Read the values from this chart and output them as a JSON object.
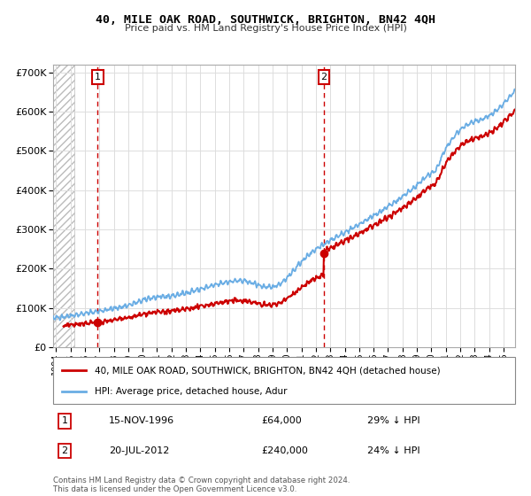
{
  "title": "40, MILE OAK ROAD, SOUTHWICK, BRIGHTON, BN42 4QH",
  "subtitle": "Price paid vs. HM Land Registry's House Price Index (HPI)",
  "ylim": [
    0,
    720000
  ],
  "xlim_start": 1993.8,
  "xlim_end": 2025.8,
  "yticks": [
    0,
    100000,
    200000,
    300000,
    400000,
    500000,
    600000,
    700000
  ],
  "ytick_labels": [
    "£0",
    "£100K",
    "£200K",
    "£300K",
    "£400K",
    "£500K",
    "£600K",
    "£700K"
  ],
  "xtick_years": [
    1994,
    1995,
    1996,
    1997,
    1998,
    1999,
    2000,
    2001,
    2002,
    2003,
    2004,
    2005,
    2006,
    2007,
    2008,
    2009,
    2010,
    2011,
    2012,
    2013,
    2014,
    2015,
    2016,
    2017,
    2018,
    2019,
    2020,
    2021,
    2022,
    2023,
    2024,
    2025
  ],
  "hatch_region_start": 1993.8,
  "hatch_region_end": 1995.3,
  "red_line_color": "#cc0000",
  "blue_line_color": "#6aade4",
  "marker1_x": 1996.88,
  "marker1_y": 64000,
  "marker2_x": 2012.55,
  "marker2_y": 240000,
  "marker1_label": "1",
  "marker2_label": "2",
  "vline1_x": 1996.88,
  "vline2_x": 2012.55,
  "legend_line1": "40, MILE OAK ROAD, SOUTHWICK, BRIGHTON, BN42 4QH (detached house)",
  "legend_line2": "HPI: Average price, detached house, Adur",
  "footnote_line1": "Contains HM Land Registry data © Crown copyright and database right 2024.",
  "footnote_line2": "This data is licensed under the Open Government Licence v3.0.",
  "table_row1_num": "1",
  "table_row1_date": "15-NOV-1996",
  "table_row1_price": "£64,000",
  "table_row1_hpi": "29% ↓ HPI",
  "table_row2_num": "2",
  "table_row2_date": "20-JUL-2012",
  "table_row2_price": "£240,000",
  "table_row2_hpi": "24% ↓ HPI",
  "bg_color": "#ffffff",
  "grid_color": "#dddddd"
}
